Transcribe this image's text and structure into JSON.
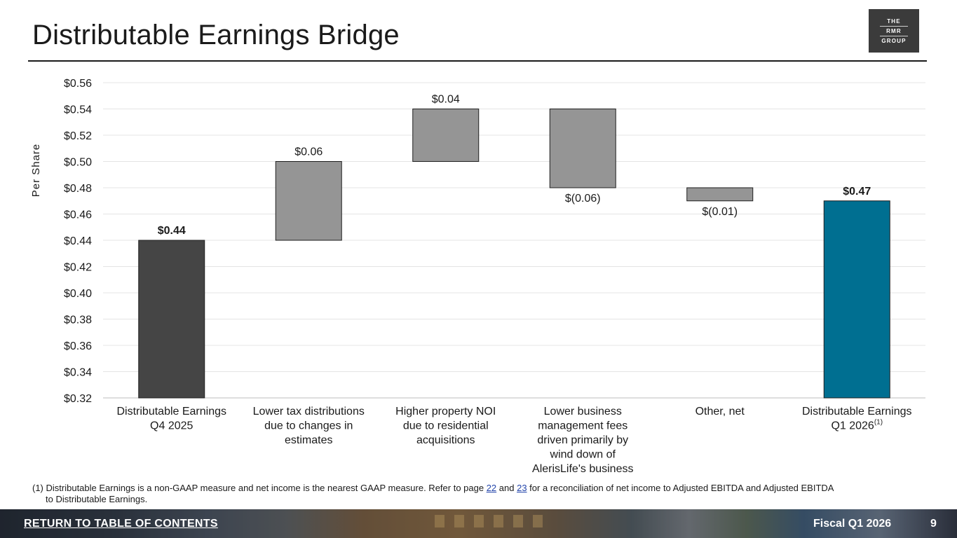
{
  "page_title": "Distributable Earnings Bridge",
  "logo": {
    "line1": "THE",
    "line2": "RMR",
    "line3": "GROUP"
  },
  "colors": {
    "start": "#454545",
    "delta": "#959595",
    "end": "#006f91",
    "grid": "#e4e4e4"
  },
  "chart_data": {
    "type": "bar",
    "subtype": "waterfall",
    "ylabel": "Per Share",
    "ylim": [
      0.32,
      0.56
    ],
    "yticks": [
      0.32,
      0.34,
      0.36,
      0.38,
      0.4,
      0.42,
      0.44,
      0.46,
      0.48,
      0.5,
      0.52,
      0.54,
      0.56
    ],
    "ytick_labels": [
      "$0.32",
      "$0.34",
      "$0.36",
      "$0.38",
      "$0.40",
      "$0.42",
      "$0.44",
      "$0.46",
      "$0.48",
      "$0.50",
      "$0.52",
      "$0.54",
      "$0.56"
    ],
    "bars": [
      {
        "kind": "total",
        "label_lines": [
          "Distributable Earnings",
          "Q4 2025"
        ],
        "sup": "",
        "from": 0.32,
        "to": 0.44,
        "value_label": "$0.44",
        "label_pos": "above",
        "bold": true
      },
      {
        "kind": "delta",
        "label_lines": [
          "Lower tax distributions",
          "due to changes in",
          "estimates"
        ],
        "sup": "",
        "from": 0.44,
        "to": 0.5,
        "value_label": "$0.06",
        "label_pos": "above",
        "bold": false
      },
      {
        "kind": "delta",
        "label_lines": [
          "Higher property NOI",
          "due to residential",
          "acquisitions"
        ],
        "sup": "",
        "from": 0.5,
        "to": 0.54,
        "value_label": "$0.04",
        "label_pos": "above",
        "bold": false
      },
      {
        "kind": "delta",
        "label_lines": [
          "Lower business",
          "management fees",
          "driven primarily by",
          "wind down of",
          "AlerisLife's business"
        ],
        "sup": "",
        "from": 0.54,
        "to": 0.48,
        "value_label": "$(0.06)",
        "label_pos": "below",
        "bold": false
      },
      {
        "kind": "delta",
        "label_lines": [
          "Other, net"
        ],
        "sup": "",
        "from": 0.48,
        "to": 0.47,
        "value_label": "$(0.01)",
        "label_pos": "below",
        "bold": false
      },
      {
        "kind": "end",
        "label_lines": [
          "Distributable Earnings",
          "Q1 2026"
        ],
        "sup": "(1)",
        "from": 0.32,
        "to": 0.47,
        "value_label": "$0.47",
        "label_pos": "above",
        "bold": true
      }
    ]
  },
  "footnote": {
    "prefix": "(1) Distributable Earnings is a non-GAAP measure and net income is the nearest GAAP measure. Refer to page ",
    "link1": "22",
    "mid": " and ",
    "link2": "23",
    "suffix": " for a reconciliation of net income to Adjusted EBITDA and Adjusted EBITDA",
    "continuation": "to Distributable Earnings."
  },
  "footer": {
    "return_link": "RETURN TO TABLE OF CONTENTS",
    "period": "Fiscal Q1 2026",
    "page_number": "9"
  }
}
